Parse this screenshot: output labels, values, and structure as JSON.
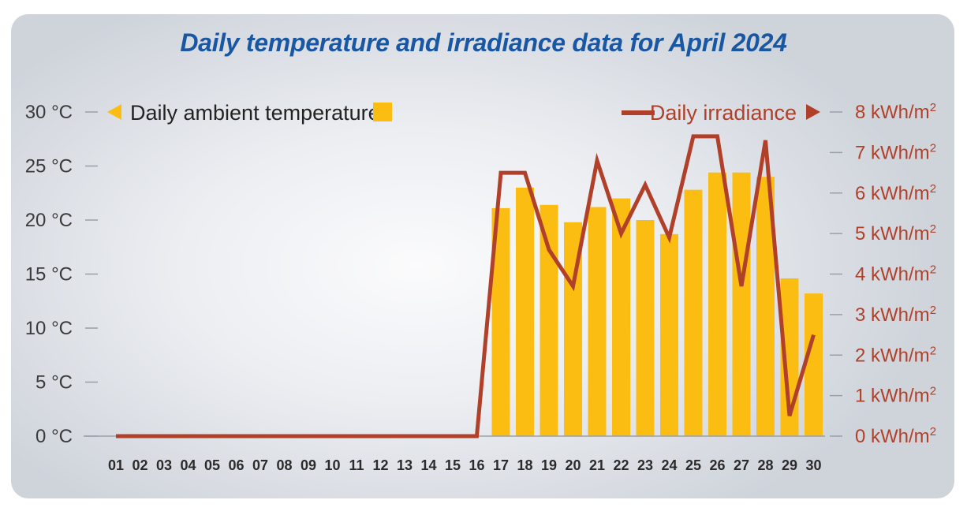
{
  "chart_data": {
    "type": "bar+line",
    "title": "Daily temperature and irradiance data for April 2024",
    "categories": [
      "01",
      "02",
      "03",
      "04",
      "05",
      "06",
      "07",
      "08",
      "09",
      "10",
      "11",
      "12",
      "13",
      "14",
      "15",
      "16",
      "17",
      "18",
      "19",
      "20",
      "21",
      "22",
      "23",
      "24",
      "25",
      "26",
      "27",
      "28",
      "29",
      "30"
    ],
    "series": [
      {
        "name": "Daily ambient temperature",
        "type": "bar",
        "axis": "left",
        "color": "#fbbd12",
        "values": [
          0,
          0,
          0,
          0,
          0,
          0,
          0,
          0,
          0,
          0,
          0,
          0,
          0,
          0,
          0,
          0,
          21.1,
          23.0,
          21.4,
          19.8,
          21.2,
          22.0,
          20.0,
          18.7,
          22.8,
          24.4,
          24.4,
          24.0,
          14.6,
          13.2
        ]
      },
      {
        "name": "Daily irradiance",
        "type": "line",
        "axis": "right",
        "color": "#b0402a",
        "values": [
          0,
          0,
          0,
          0,
          0,
          0,
          0,
          0,
          0,
          0,
          0,
          0,
          0,
          0,
          0,
          0,
          6.5,
          6.5,
          4.6,
          3.7,
          6.8,
          5.0,
          6.2,
          4.9,
          7.4,
          7.4,
          3.7,
          7.3,
          0.5,
          2.5
        ]
      }
    ],
    "y_left": {
      "ticks": [
        0,
        5,
        10,
        15,
        20,
        25,
        30
      ],
      "tick_labels": [
        "0 °C",
        "5 °C",
        "10 °C",
        "15 °C",
        "20 °C",
        "25 °C",
        "30 °C"
      ],
      "range": [
        0,
        30
      ]
    },
    "y_right": {
      "ticks": [
        0,
        1,
        2,
        3,
        4,
        5,
        6,
        7,
        8
      ],
      "tick_number_labels": [
        "0",
        "1",
        "2",
        "3",
        "4",
        "5",
        "6",
        "7",
        "8"
      ],
      "unit": "kWh/m",
      "unit_superscript": "2",
      "range": [
        0,
        8
      ]
    },
    "legend": [
      {
        "label": "Daily ambient temperature",
        "marker": "square",
        "arrow": "left",
        "placement": "top-left"
      },
      {
        "label": "Daily irradiance",
        "marker": "line",
        "arrow": "right",
        "placement": "top-right"
      }
    ],
    "grid": false
  }
}
